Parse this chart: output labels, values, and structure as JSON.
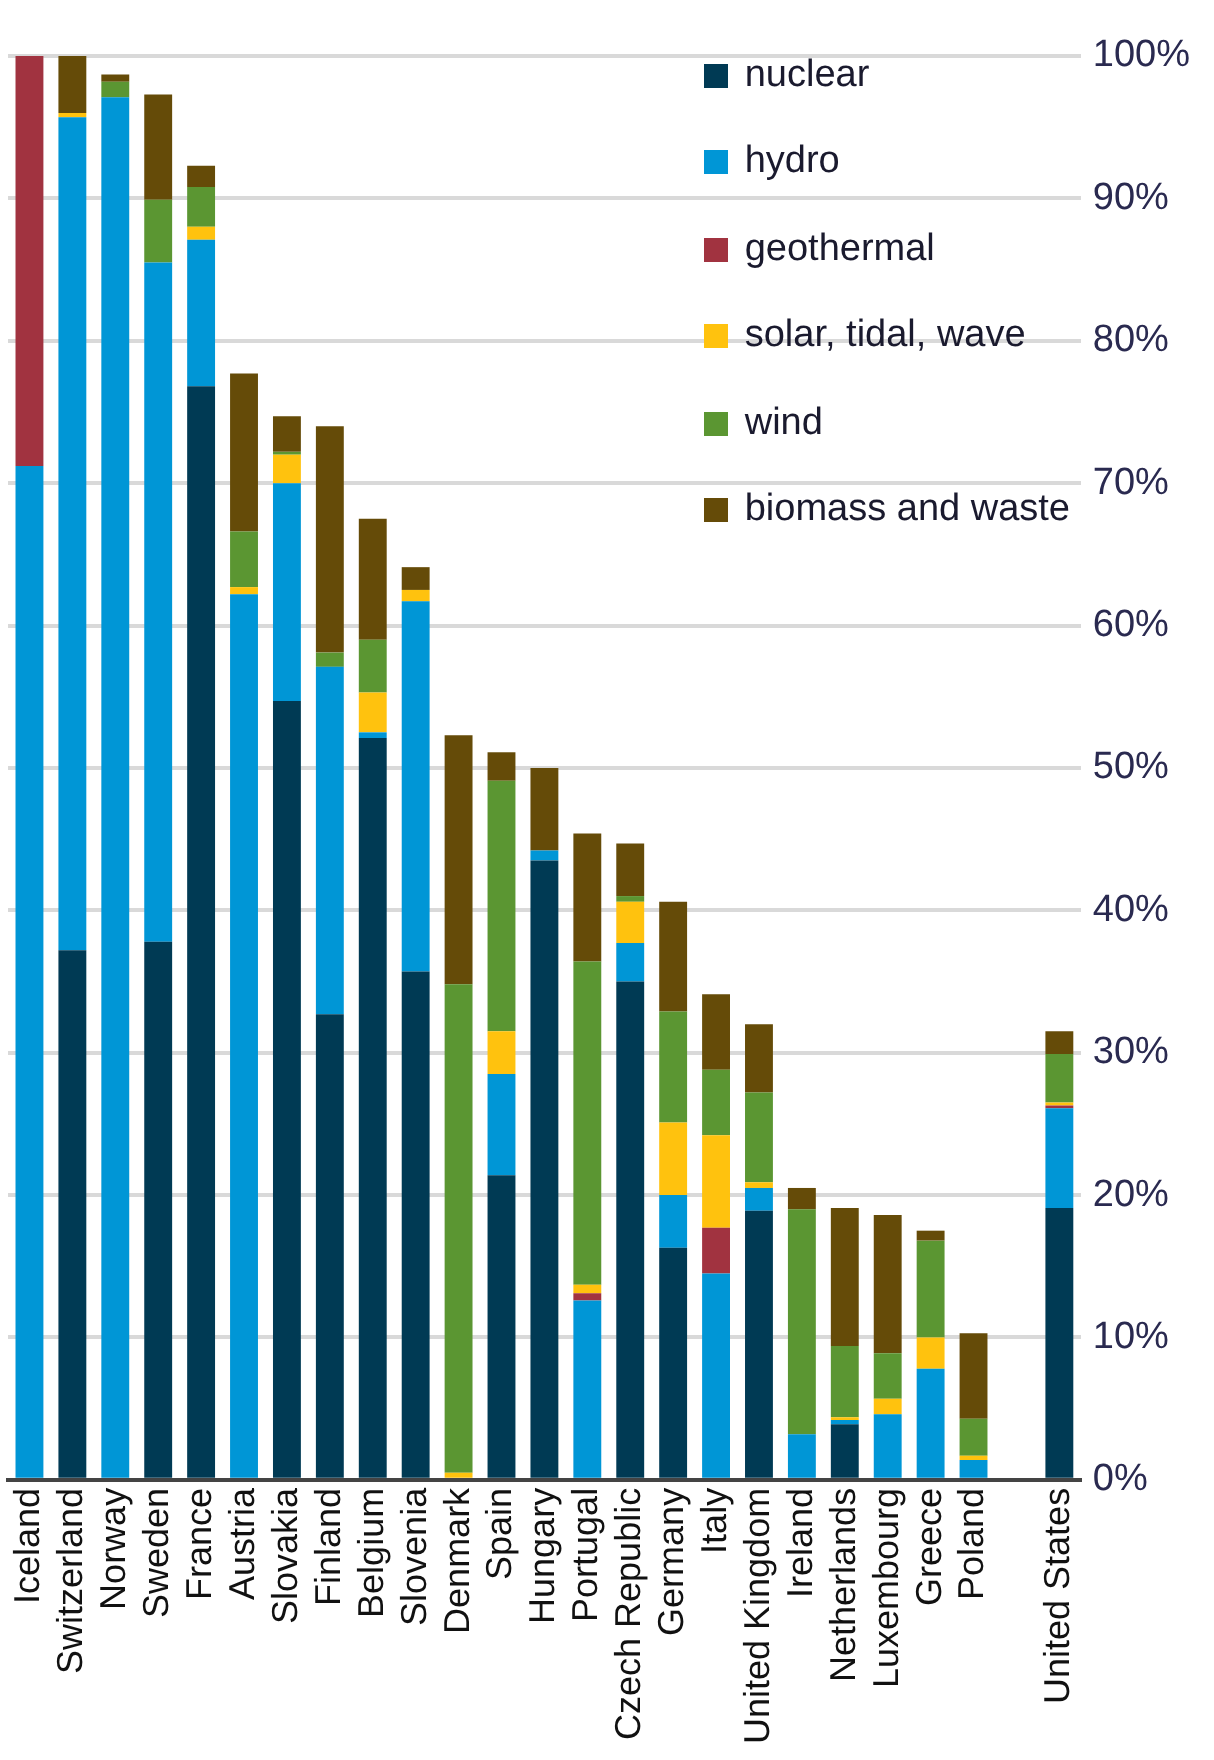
{
  "chart_data": {
    "type": "bar",
    "stacked": true,
    "categories": [
      "Iceland",
      "Switzerland",
      "Norway",
      "Sweden",
      "France",
      "Austria",
      "Slovakia",
      "Finland",
      "Belgium",
      "Slovenia",
      "Denmark",
      "Spain",
      "Hungary",
      "Portugal",
      "Czech Republic",
      "Germany",
      "Italy",
      "United Kingdom",
      "Ireland",
      "Netherlands",
      "Luxembourg",
      "Greece",
      "Poland",
      null,
      "United States"
    ],
    "series": [
      {
        "name": "nuclear",
        "color": "#003a54",
        "values": [
          0,
          37.2,
          0,
          37.8,
          76.8,
          0,
          54.7,
          32.7,
          52.1,
          35.7,
          0,
          21.4,
          43.5,
          0,
          35.0,
          16.3,
          0,
          18.9,
          0,
          3.9,
          0,
          0,
          0,
          null,
          19.1
        ]
      },
      {
        "name": "hydro",
        "color": "#0096d6",
        "values": [
          71.2,
          58.5,
          97.1,
          47.7,
          10.3,
          62.2,
          15.3,
          24.4,
          0.4,
          26.0,
          0,
          7.1,
          0.7,
          12.6,
          2.7,
          3.7,
          14.5,
          1.6,
          3.2,
          0.3,
          4.6,
          7.8,
          1.4,
          null,
          7.0
        ]
      },
      {
        "name": "geothermal",
        "color": "#a13340",
        "values": [
          28.8,
          0,
          0,
          0,
          0,
          0,
          0,
          0,
          0,
          0,
          0,
          0,
          0,
          0.5,
          0,
          0,
          3.2,
          0,
          0,
          0,
          0,
          0,
          0,
          null,
          0.2
        ]
      },
      {
        "name": "solar, tidal, wave",
        "color": "#ffc20e",
        "values": [
          0,
          0.3,
          0,
          0,
          0.9,
          0.5,
          2.0,
          0,
          2.8,
          0.8,
          0.5,
          3.0,
          0,
          0.6,
          2.9,
          5.1,
          6.5,
          0.4,
          0,
          0.2,
          1.1,
          2.2,
          0.3,
          null,
          0.2
        ]
      },
      {
        "name": "wind",
        "color": "#5b9632",
        "values": [
          0,
          0,
          1.1,
          4.4,
          2.8,
          3.9,
          0.2,
          1.0,
          3.7,
          0,
          34.3,
          17.6,
          0,
          22.7,
          0.4,
          7.8,
          4.6,
          6.3,
          15.8,
          5.0,
          3.2,
          6.8,
          2.6,
          null,
          3.4
        ]
      },
      {
        "name": "biomass and waste",
        "color": "#654b08",
        "values": [
          0,
          4.0,
          0.5,
          7.4,
          1.5,
          11.1,
          2.5,
          15.9,
          8.5,
          1.6,
          17.5,
          2.0,
          5.8,
          9.0,
          3.7,
          7.7,
          5.3,
          4.8,
          1.5,
          9.7,
          9.7,
          0.7,
          6.0,
          null,
          1.6
        ]
      }
    ],
    "ylim": [
      0,
      100
    ],
    "yticks": [
      {
        "value": 0,
        "label": "0%"
      },
      {
        "value": 10,
        "label": "10%"
      },
      {
        "value": 20,
        "label": "20%"
      },
      {
        "value": 30,
        "label": "30%"
      },
      {
        "value": 40,
        "label": "40%"
      },
      {
        "value": 50,
        "label": "50%"
      },
      {
        "value": 60,
        "label": "60%"
      },
      {
        "value": 70,
        "label": "70%"
      },
      {
        "value": 80,
        "label": "80%"
      },
      {
        "value": 90,
        "label": "90%"
      },
      {
        "value": 100,
        "label": "100%"
      }
    ],
    "grid": "y",
    "legend": "top right"
  }
}
